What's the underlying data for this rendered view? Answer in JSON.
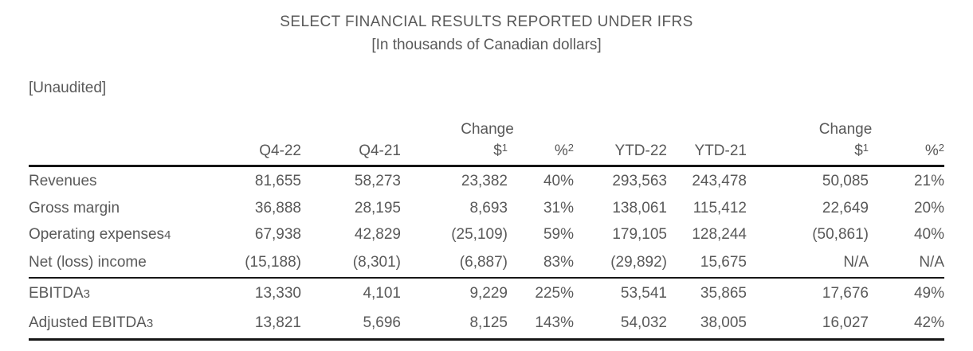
{
  "title": "SELECT FINANCIAL RESULTS REPORTED UNDER IFRS",
  "subtitle": "[In thousands of Canadian dollars]",
  "unaudited_label": "[Unaudited]",
  "colors": {
    "text_gray": "#595959",
    "rule_black": "#161616"
  },
  "table": {
    "change_header": "Change",
    "columns": {
      "q4_22": "Q4-22",
      "q4_21": "Q4-21",
      "dollar_sign": "$",
      "dollar_footnote": "1",
      "percent_sign": "%",
      "percent_footnote": "2",
      "ytd_22": "YTD-22",
      "ytd_21": "YTD-21"
    },
    "rows": [
      {
        "label": "Revenues",
        "footnote": "",
        "values": [
          "81,655",
          "58,273",
          "23,382",
          "40%",
          "293,563",
          "243,478",
          "50,085",
          "21%"
        ]
      },
      {
        "label": "Gross margin",
        "footnote": "",
        "values": [
          "36,888",
          "28,195",
          "8,693",
          "31%",
          "138,061",
          "115,412",
          "22,649",
          "20%"
        ]
      },
      {
        "label": "Operating expenses",
        "footnote": "4",
        "values": [
          "67,938",
          "42,829",
          "(25,109)",
          "59%",
          "179,105",
          "128,244",
          "(50,861)",
          "40%"
        ]
      },
      {
        "label": "Net (loss) income",
        "footnote": "",
        "values": [
          "(15,188)",
          "(8,301)",
          "(6,887)",
          "83%",
          "(29,892)",
          "15,675",
          "N/A",
          "N/A"
        ]
      },
      {
        "label": "EBITDA",
        "footnote": "3",
        "values": [
          "13,330",
          "4,101",
          "9,229",
          "225%",
          "53,541",
          "35,865",
          "17,676",
          "49%"
        ]
      },
      {
        "label": "Adjusted EBITDA",
        "footnote": "3",
        "values": [
          "13,821",
          "5,696",
          "8,125",
          "143%",
          "54,032",
          "38,005",
          "16,027",
          "42%"
        ]
      }
    ]
  }
}
